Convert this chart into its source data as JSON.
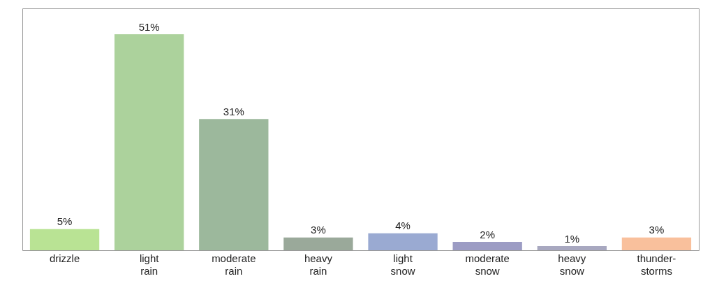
{
  "chart_data": {
    "type": "bar",
    "categories": [
      "drizzle",
      "light rain",
      "moderate rain",
      "heavy rain",
      "light snow",
      "moderate snow",
      "heavy snow",
      "thunder-storms"
    ],
    "values": [
      5,
      51,
      31,
      3,
      4,
      2,
      1,
      3
    ],
    "colors": [
      "#b9e394",
      "#acd29c",
      "#9cb89c",
      "#9aa99a",
      "#9aaad2",
      "#9c9cc4",
      "#a8a8c0",
      "#f9c09c"
    ],
    "value_labels": [
      "5%",
      "51%",
      "31%",
      "3%",
      "4%",
      "2%",
      "1%",
      "3%"
    ],
    "grid": false,
    "legend": false
  }
}
